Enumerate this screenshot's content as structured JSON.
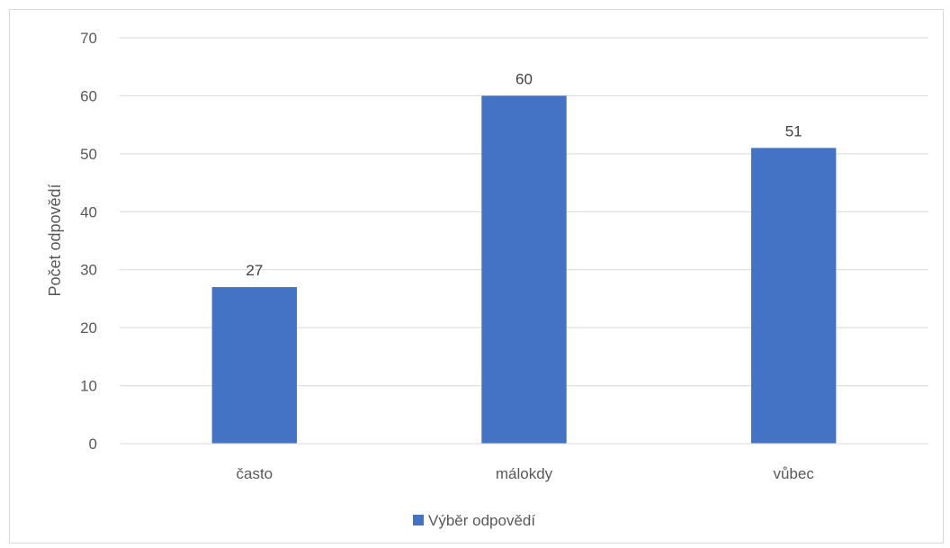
{
  "chart_data": {
    "type": "bar",
    "title": "",
    "xlabel": "",
    "ylabel": "Počet odpovědí",
    "categories": [
      "často",
      "málokdy",
      "vůbec"
    ],
    "series": [
      {
        "name": "Výběr odpovědí",
        "values": [
          27,
          60,
          51
        ],
        "color": "#4472c4"
      }
    ],
    "ylim": [
      0,
      70
    ],
    "yticks": [
      "0",
      "10",
      "20",
      "30",
      "40",
      "50",
      "60",
      "70"
    ],
    "grid": true,
    "legend_position": "bottom",
    "data_labels": [
      "27",
      "60",
      "51"
    ]
  }
}
